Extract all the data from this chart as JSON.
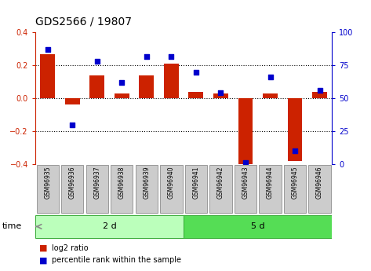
{
  "title": "GDS2566 / 19807",
  "samples": [
    "GSM96935",
    "GSM96936",
    "GSM96937",
    "GSM96938",
    "GSM96939",
    "GSM96940",
    "GSM96941",
    "GSM96942",
    "GSM96943",
    "GSM96944",
    "GSM96945",
    "GSM96946"
  ],
  "log2_ratio": [
    0.27,
    -0.04,
    0.14,
    0.03,
    0.14,
    0.21,
    0.04,
    0.03,
    -0.4,
    0.03,
    -0.38,
    0.04
  ],
  "percentile_rank": [
    87,
    30,
    78,
    62,
    82,
    82,
    70,
    54,
    1,
    66,
    10,
    56
  ],
  "group_labels": [
    "2 d",
    "5 d"
  ],
  "group_ranges": [
    [
      0,
      6
    ],
    [
      6,
      12
    ]
  ],
  "bar_color": "#cc2200",
  "dot_color": "#0000cc",
  "ylim_left": [
    -0.4,
    0.4
  ],
  "ylim_right": [
    0,
    100
  ],
  "yticks_left": [
    -0.4,
    -0.2,
    0.0,
    0.2,
    0.4
  ],
  "yticks_right": [
    0,
    25,
    50,
    75,
    100
  ],
  "hlines": [
    0.2,
    0.0,
    -0.2
  ],
  "sample_box_color": "#cccccc",
  "group1_color": "#bbffbb",
  "group2_color": "#55dd55",
  "time_label": "time",
  "legend_items": [
    "log2 ratio",
    "percentile rank within the sample"
  ],
  "title_fontsize": 10,
  "tick_fontsize": 7,
  "label_fontsize": 8,
  "sample_fontsize": 5.5
}
